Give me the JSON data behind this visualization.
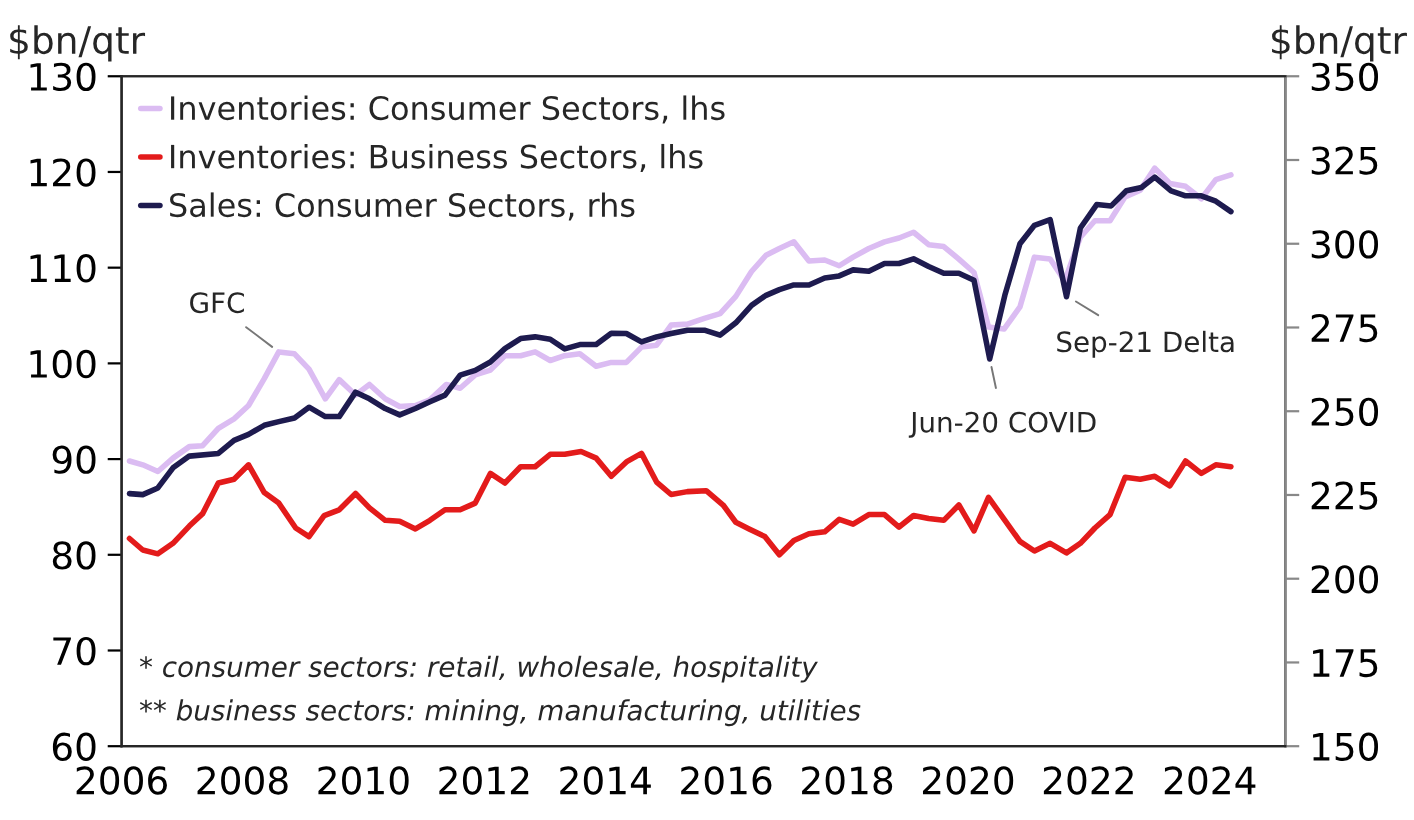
{
  "chart_data": {
    "type": "line",
    "ylabel": "$bn/qtr",
    "y2label": "$bn/qtr",
    "xlim": [
      2006,
      2025.25
    ],
    "xticks": [
      2006,
      2008,
      2010,
      2012,
      2014,
      2016,
      2018,
      2020,
      2022,
      2024
    ],
    "ylim": [
      60,
      130
    ],
    "yticks": [
      60,
      70,
      80,
      90,
      100,
      110,
      120,
      130
    ],
    "y2lim": [
      150,
      350
    ],
    "y2ticks": [
      150,
      175,
      200,
      225,
      250,
      275,
      300,
      325,
      350
    ],
    "grid": false,
    "legend": "top left",
    "marker": "none",
    "line_style": "solid",
    "series": [
      {
        "name": "Inventories: Consumer Sectors, lhs",
        "color": "#dbbcf2",
        "x": [
          2006.13,
          2006.35,
          2006.6,
          2006.85,
          2007.12,
          2007.34,
          2007.6,
          2007.86,
          2008.1,
          2008.36,
          2008.6,
          2008.86,
          2009.1,
          2009.37,
          2009.6,
          2009.87,
          2010.1,
          2010.36,
          2010.6,
          2010.86,
          2011.1,
          2011.37,
          2011.6,
          2011.85,
          2012.1,
          2012.34,
          2012.6,
          2012.84,
          2013.09,
          2013.33,
          2013.58,
          2013.85,
          2014.1,
          2014.35,
          2014.6,
          2014.85,
          2015.09,
          2015.36,
          2015.64,
          2015.9,
          2016.16,
          2016.42,
          2016.66,
          2016.88,
          2017.12,
          2017.37,
          2017.63,
          2017.87,
          2018.1,
          2018.36,
          2018.62,
          2018.86,
          2019.1,
          2019.35,
          2019.6,
          2019.85,
          2020.1,
          2020.34,
          2020.6,
          2020.86,
          2021.1,
          2021.36,
          2021.6,
          2021.86,
          2022.1,
          2022.35,
          2022.6,
          2022.85,
          2023.09,
          2023.34,
          2023.6,
          2023.86,
          2024.1,
          2024.35
        ],
        "values": [
          89.8,
          89.4,
          88.7,
          90.1,
          91.3,
          91.4,
          93.2,
          94.2,
          95.6,
          98.4,
          101.2,
          101.0,
          99.4,
          96.3,
          98.3,
          96.7,
          97.8,
          96.3,
          95.5,
          95.6,
          96.2,
          97.8,
          97.4,
          98.8,
          99.3,
          100.8,
          100.8,
          101.2,
          100.3,
          100.8,
          101.0,
          99.7,
          100.1,
          100.1,
          101.7,
          101.9,
          104.0,
          104.1,
          104.7,
          105.2,
          107.0,
          109.6,
          111.3,
          112.0,
          112.7,
          110.7,
          110.8,
          110.2,
          111.1,
          112.0,
          112.7,
          113.1,
          113.7,
          112.4,
          112.2,
          110.9,
          109.5,
          103.8,
          103.6,
          105.9,
          111.1,
          110.9,
          108.6,
          113.2,
          114.9,
          114.9,
          117.4,
          118.1,
          120.4,
          118.8,
          118.5,
          117.2,
          119.2,
          119.7
        ]
      },
      {
        "name": "Inventories: Business Sectors, lhs",
        "color": "#e31b1b",
        "x": [
          2006.13,
          2006.35,
          2006.6,
          2006.85,
          2007.12,
          2007.34,
          2007.6,
          2007.86,
          2008.1,
          2008.36,
          2008.6,
          2008.88,
          2009.1,
          2009.35,
          2009.6,
          2009.87,
          2010.1,
          2010.36,
          2010.6,
          2010.86,
          2011.1,
          2011.35,
          2011.6,
          2011.85,
          2012.1,
          2012.34,
          2012.6,
          2012.84,
          2013.09,
          2013.33,
          2013.6,
          2013.85,
          2014.1,
          2014.35,
          2014.6,
          2014.85,
          2015.09,
          2015.36,
          2015.67,
          2015.95,
          2016.16,
          2016.38,
          2016.64,
          2016.88,
          2017.12,
          2017.37,
          2017.63,
          2017.87,
          2018.1,
          2018.36,
          2018.62,
          2018.86,
          2019.1,
          2019.35,
          2019.6,
          2019.85,
          2020.1,
          2020.34,
          2020.6,
          2020.86,
          2021.1,
          2021.36,
          2021.63,
          2021.86,
          2022.1,
          2022.35,
          2022.6,
          2022.85,
          2023.09,
          2023.34,
          2023.6,
          2023.86,
          2024.1,
          2024.35
        ],
        "values": [
          81.7,
          80.5,
          80.1,
          81.2,
          83.0,
          84.3,
          87.5,
          87.9,
          89.4,
          86.5,
          85.4,
          82.8,
          81.9,
          84.1,
          84.7,
          86.4,
          84.9,
          83.6,
          83.5,
          82.7,
          83.6,
          84.7,
          84.7,
          85.4,
          88.5,
          87.5,
          89.2,
          89.2,
          90.5,
          90.5,
          90.8,
          90.1,
          88.2,
          89.7,
          90.6,
          87.6,
          86.3,
          86.6,
          86.7,
          85.2,
          83.4,
          82.7,
          81.9,
          80.0,
          81.5,
          82.2,
          82.4,
          83.7,
          83.2,
          84.2,
          84.2,
          82.9,
          84.1,
          83.8,
          83.6,
          85.2,
          82.5,
          86.0,
          83.7,
          81.4,
          80.4,
          81.2,
          80.2,
          81.2,
          82.8,
          84.2,
          88.1,
          87.9,
          88.2,
          87.2,
          89.8,
          88.5,
          89.4,
          89.2
        ]
      },
      {
        "name": "Sales: Consumer Sectors, rhs",
        "color": "#1e1b4f",
        "axis": "y2",
        "x": [
          2006.13,
          2006.35,
          2006.6,
          2006.85,
          2007.12,
          2007.6,
          2007.86,
          2008.1,
          2008.36,
          2008.6,
          2008.86,
          2009.1,
          2009.37,
          2009.6,
          2009.87,
          2010.1,
          2010.36,
          2010.6,
          2010.86,
          2011.1,
          2011.35,
          2011.6,
          2011.85,
          2012.1,
          2012.34,
          2012.6,
          2012.84,
          2013.09,
          2013.33,
          2013.58,
          2013.85,
          2014.1,
          2014.35,
          2014.6,
          2014.85,
          2015.09,
          2015.36,
          2015.64,
          2015.9,
          2016.16,
          2016.42,
          2016.66,
          2016.88,
          2017.12,
          2017.37,
          2017.63,
          2017.87,
          2018.1,
          2018.36,
          2018.62,
          2018.86,
          2019.1,
          2019.35,
          2019.6,
          2019.85,
          2020.1,
          2020.36,
          2020.61,
          2020.86,
          2021.1,
          2021.36,
          2021.63,
          2021.86,
          2022.13,
          2022.37,
          2022.62,
          2022.87,
          2023.09,
          2023.36,
          2023.6,
          2023.86,
          2024.1,
          2024.35
        ],
        "values": [
          225.4,
          225.1,
          227.1,
          233.1,
          236.6,
          237.4,
          241.3,
          243.1,
          245.8,
          246.9,
          248.0,
          251.2,
          248.4,
          248.4,
          255.7,
          253.7,
          250.8,
          248.9,
          250.8,
          252.8,
          254.8,
          260.8,
          262.2,
          264.7,
          268.7,
          271.7,
          272.2,
          271.5,
          268.6,
          269.9,
          269.9,
          273.3,
          273.2,
          270.7,
          272.2,
          273.2,
          274.2,
          274.2,
          272.7,
          276.4,
          281.6,
          284.6,
          286.3,
          287.7,
          287.7,
          289.8,
          290.4,
          292.2,
          291.8,
          294.1,
          294.1,
          295.5,
          293.2,
          291.2,
          291.2,
          289.1,
          265.6,
          284.6,
          300.0,
          305.5,
          307.2,
          284.2,
          304.7,
          311.7,
          311.3,
          315.8,
          316.8,
          319.9,
          315.8,
          314.3,
          314.3,
          312.7,
          309.6
        ]
      }
    ],
    "annotations": [
      {
        "text": "GFC",
        "x": 2008.6,
        "y": 101.2
      },
      "Jun-20 COVID",
      "Sep-21 Delta",
      "* consumer sectors: retail, wholesale, hospitality",
      "** business sectors: mining, manufacturing, utilities"
    ]
  }
}
